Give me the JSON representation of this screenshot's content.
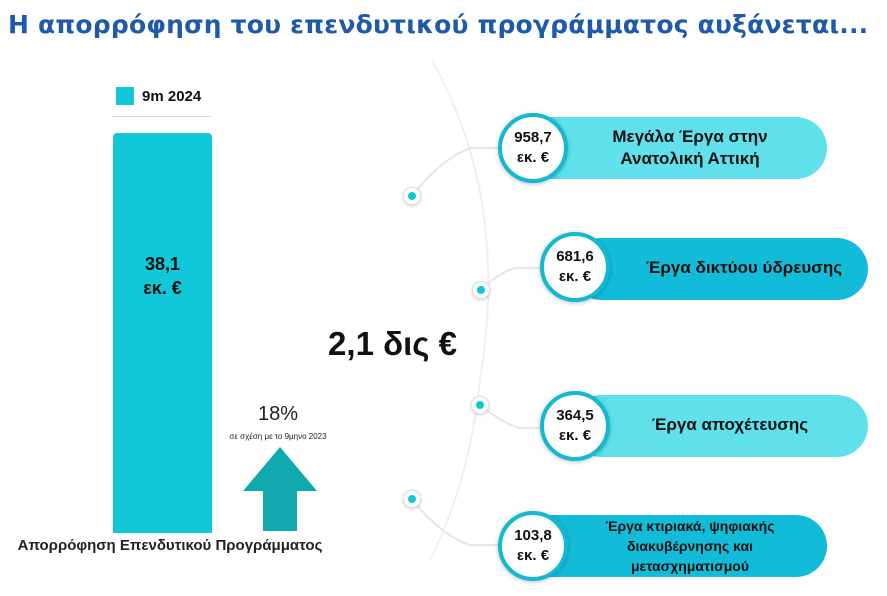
{
  "title": "Η απορρόφηση του επενδυτικού προγράμματος αυξάνεται...",
  "colors": {
    "title": "#1e5aa8",
    "bar": "#12c8d8",
    "pill_light": "#5fe0ea",
    "pill_dark": "#12bcd8",
    "arrow": "#10a9ae"
  },
  "chart_data": {
    "type": "bar",
    "categories": [
      "Απορρόφηση Επενδυτικού Προγράμματος"
    ],
    "series": [
      {
        "name": "9m 2024",
        "values": [
          38.1
        ]
      }
    ],
    "value_label": "38,1 εκ. €",
    "value_label_lines": [
      "38,1",
      "εκ. €"
    ],
    "xlabel": "Απορρόφηση Επενδυτικού Προγράμματος",
    "legend": "top",
    "change": {
      "value": "18%",
      "note": "σε σχέση με το 9μηνο 2023",
      "direction": "up"
    }
  },
  "program": {
    "total": "2,1 δις €",
    "items": [
      {
        "value": 958.7,
        "amount": "958,7",
        "unit": "εκ. €",
        "label": [
          "Μεγάλα Έργα στην",
          "Ανατολική Αττική"
        ],
        "style": "light"
      },
      {
        "value": 681.6,
        "amount": "681,6",
        "unit": "εκ. €",
        "label": [
          "Έργα δικτύου ύδρευσης"
        ],
        "style": "dark"
      },
      {
        "value": 364.5,
        "amount": "364,5",
        "unit": "εκ. €",
        "label": [
          "Έργα αποχέτευσης"
        ],
        "style": "light"
      },
      {
        "value": 103.8,
        "amount": "103,8",
        "unit": "εκ. €",
        "label": [
          "Έργα κτιριακά, ψηφιακής",
          "διακυβέρνησης και",
          "μετασχηματισμού"
        ],
        "style": "dark"
      }
    ]
  }
}
